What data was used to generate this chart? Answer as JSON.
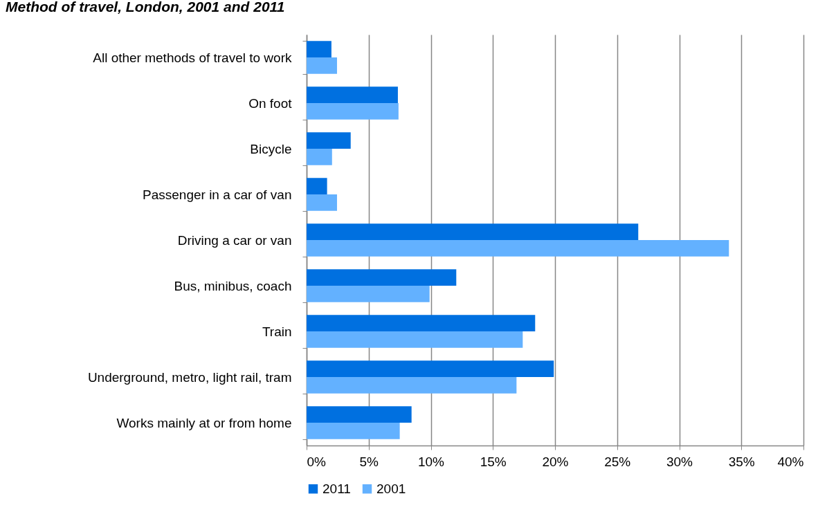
{
  "chart_data": {
    "type": "bar",
    "orientation": "horizontal",
    "title": "Method of travel, London, 2001 and 2011",
    "categories": [
      "All other methods of travel to work",
      "On foot",
      "Bicycle",
      "Passenger in a car of van",
      "Driving a car or van",
      "Bus, minibus, coach",
      "Train",
      "Underground, metro, light rail, tram",
      "Works mainly at or from home"
    ],
    "series": [
      {
        "name": "2011",
        "color": "#0070e0",
        "values": [
          2.0,
          7.35,
          3.55,
          1.65,
          26.7,
          12.05,
          18.4,
          19.9,
          8.45
        ]
      },
      {
        "name": "2001",
        "color": "#63b1ff",
        "values": [
          2.45,
          7.4,
          2.05,
          2.45,
          34.0,
          9.9,
          17.4,
          16.9,
          7.5
        ]
      }
    ],
    "xlim": [
      0,
      40
    ],
    "xticks": [
      {
        "value": 0,
        "label": "0%"
      },
      {
        "value": 5,
        "label": "5%"
      },
      {
        "value": 10,
        "label": "10%"
      },
      {
        "value": 15,
        "label": "15%"
      },
      {
        "value": 20,
        "label": "20%"
      },
      {
        "value": 25,
        "label": "25%"
      },
      {
        "value": 30,
        "label": "30%"
      },
      {
        "value": 35,
        "label": "35%"
      },
      {
        "value": 40,
        "label": "40%"
      }
    ],
    "grid": "x",
    "legend": "bottom"
  }
}
